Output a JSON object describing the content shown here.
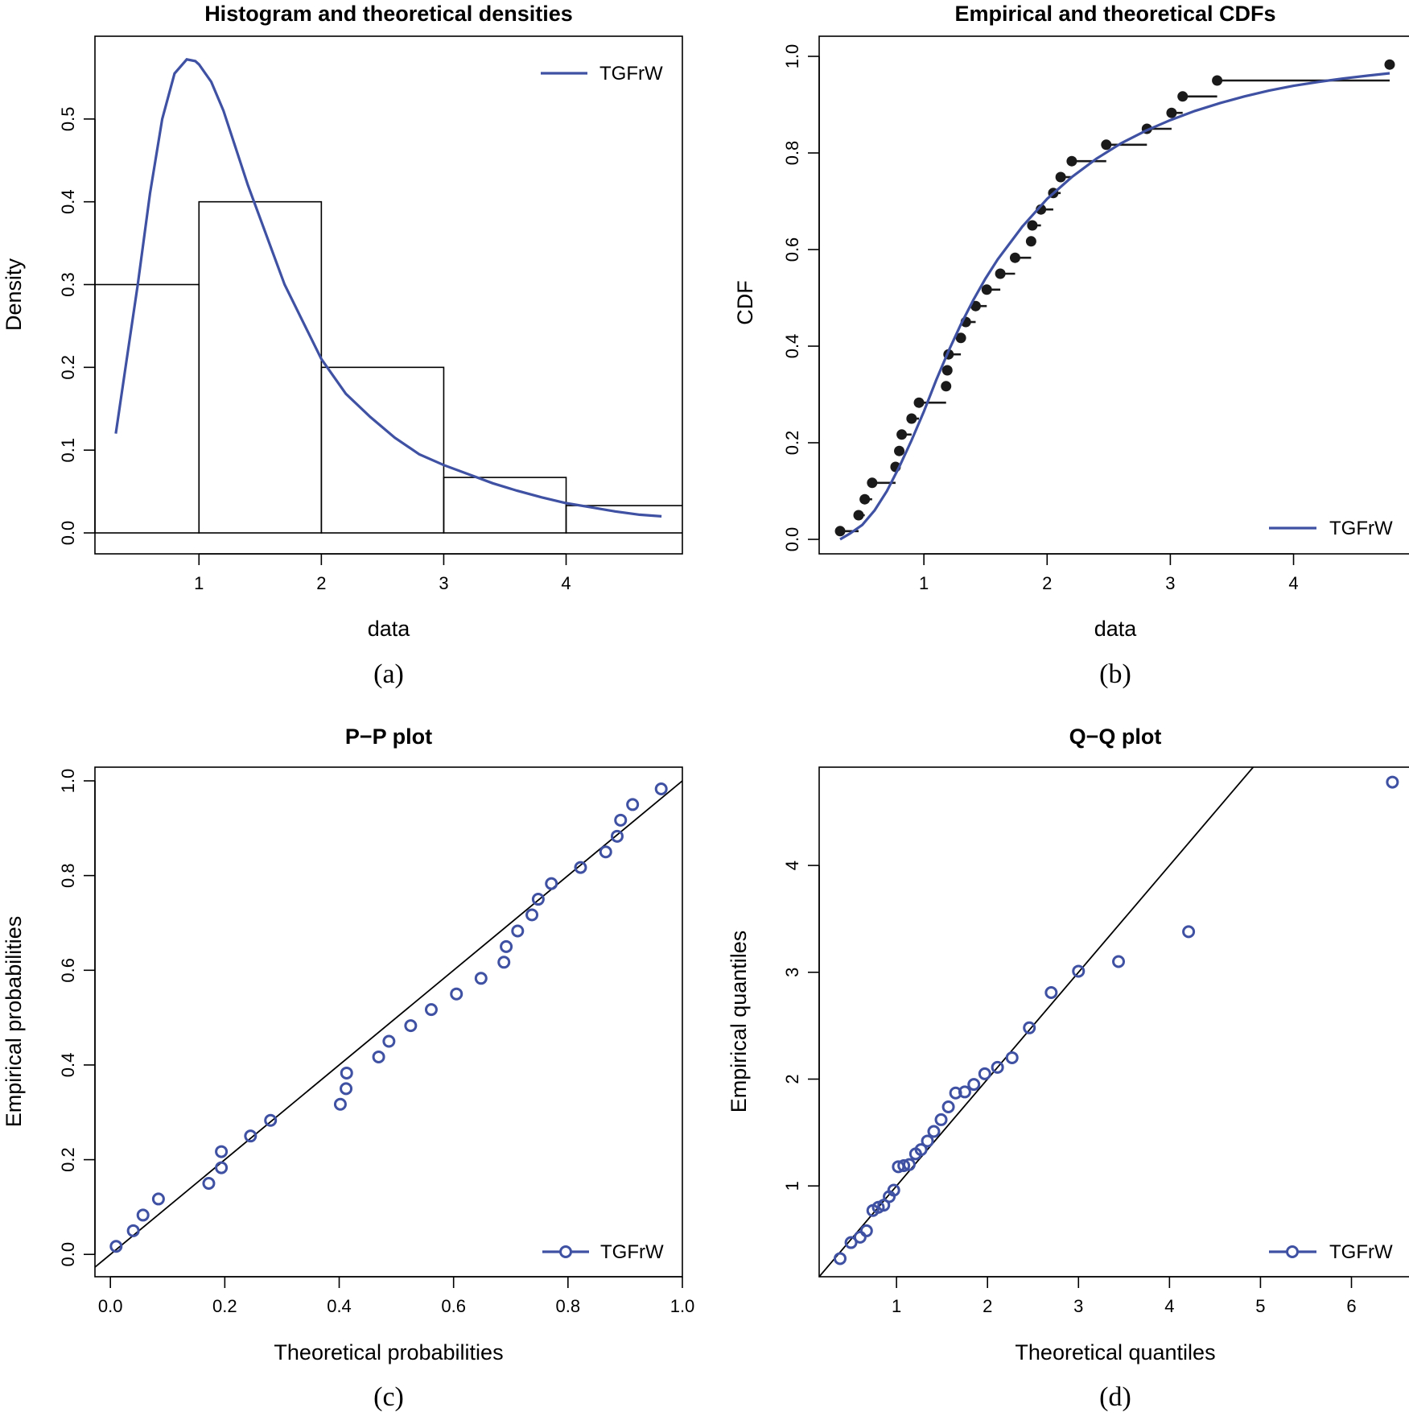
{
  "colors": {
    "series": "#3f51a3",
    "ink": "#000000",
    "points": "#1a1a1a"
  },
  "chart_data": [
    {
      "id": "a",
      "type": "bar",
      "title": "Histogram and theoretical densities",
      "xlabel": "data",
      "ylabel": "Density",
      "caption": "(a)",
      "xlim": [
        0.15,
        4.95
      ],
      "ylim": [
        0,
        0.6
      ],
      "xticks": [
        1,
        2,
        3,
        4
      ],
      "yticks": [
        0.0,
        0.1,
        0.2,
        0.3,
        0.4,
        0.5
      ],
      "ytick_labels": [
        "0.0",
        "0.1",
        "0.2",
        "0.3",
        "0.4",
        "0.5"
      ],
      "bins": [
        [
          0,
          1
        ],
        [
          1,
          2
        ],
        [
          2,
          3
        ],
        [
          3,
          4
        ],
        [
          4,
          5
        ]
      ],
      "values": [
        0.3,
        0.4,
        0.2,
        0.067,
        0.033
      ],
      "legend": {
        "position": "top-right",
        "entries": [
          "TGFrW"
        ]
      },
      "series": [
        {
          "name": "TGFrW",
          "kind": "line",
          "x": [
            0.32,
            0.4,
            0.5,
            0.6,
            0.7,
            0.8,
            0.9,
            0.97,
            1.0,
            1.1,
            1.2,
            1.3,
            1.4,
            1.5,
            1.6,
            1.7,
            1.8,
            2.0,
            2.2,
            2.4,
            2.6,
            2.8,
            3.0,
            3.2,
            3.4,
            3.6,
            3.8,
            4.0,
            4.2,
            4.4,
            4.6,
            4.78
          ],
          "y": [
            0.12,
            0.2,
            0.3,
            0.41,
            0.5,
            0.555,
            0.572,
            0.57,
            0.566,
            0.545,
            0.51,
            0.465,
            0.42,
            0.38,
            0.34,
            0.3,
            0.27,
            0.21,
            0.168,
            0.14,
            0.115,
            0.095,
            0.082,
            0.071,
            0.06,
            0.051,
            0.043,
            0.036,
            0.031,
            0.026,
            0.022,
            0.02
          ]
        }
      ]
    },
    {
      "id": "b",
      "type": "line",
      "title": "Empirical and theoretical CDFs",
      "xlabel": "data",
      "ylabel": "CDF",
      "caption": "(b)",
      "xlim": [
        0.15,
        4.95
      ],
      "ylim": [
        0,
        1.0
      ],
      "xticks": [
        1,
        2,
        3,
        4
      ],
      "yticks": [
        0.0,
        0.2,
        0.4,
        0.6,
        0.8,
        1.0
      ],
      "ytick_labels": [
        "0.0",
        "0.2",
        "0.4",
        "0.6",
        "0.8",
        "1.0"
      ],
      "legend": {
        "position": "bottom-right",
        "entries": [
          "TGFrW"
        ]
      },
      "ecdf_x": [
        0.32,
        0.47,
        0.52,
        0.58,
        0.77,
        0.8,
        0.82,
        0.9,
        0.96,
        1.18,
        1.19,
        1.2,
        1.3,
        1.34,
        1.42,
        1.51,
        1.62,
        1.74,
        1.87,
        1.88,
        1.95,
        2.05,
        2.11,
        2.2,
        2.48,
        2.81,
        3.01,
        3.1,
        3.38,
        4.78
      ],
      "ecdf_y": [
        0.017,
        0.05,
        0.083,
        0.117,
        0.15,
        0.183,
        0.217,
        0.25,
        0.283,
        0.317,
        0.35,
        0.383,
        0.417,
        0.45,
        0.483,
        0.517,
        0.55,
        0.583,
        0.617,
        0.65,
        0.683,
        0.717,
        0.75,
        0.783,
        0.817,
        0.85,
        0.883,
        0.917,
        0.95,
        0.983
      ],
      "series": [
        {
          "name": "TGFrW",
          "kind": "line",
          "x": [
            0.32,
            0.4,
            0.5,
            0.6,
            0.7,
            0.8,
            0.9,
            1.0,
            1.1,
            1.2,
            1.3,
            1.4,
            1.5,
            1.6,
            1.8,
            2.0,
            2.2,
            2.4,
            2.6,
            2.8,
            3.0,
            3.2,
            3.4,
            3.6,
            3.8,
            4.0,
            4.2,
            4.4,
            4.6,
            4.78
          ],
          "y": [
            0.0,
            0.012,
            0.03,
            0.06,
            0.1,
            0.15,
            0.205,
            0.265,
            0.33,
            0.39,
            0.445,
            0.495,
            0.54,
            0.58,
            0.648,
            0.705,
            0.75,
            0.788,
            0.82,
            0.846,
            0.868,
            0.887,
            0.903,
            0.917,
            0.929,
            0.939,
            0.947,
            0.954,
            0.96,
            0.965
          ]
        }
      ]
    },
    {
      "id": "c",
      "type": "scatter",
      "title": "P−P plot",
      "xlabel": "Theoretical probabilities",
      "ylabel": "Empirical probabilities",
      "caption": "(c)",
      "xlim": [
        -0.027,
        1.0
      ],
      "ylim": [
        -0.02,
        1.0
      ],
      "xticks": [
        0.0,
        0.2,
        0.4,
        0.6,
        0.8,
        1.0
      ],
      "xtick_labels": [
        "0.0",
        "0.2",
        "0.4",
        "0.6",
        "0.8",
        "1.0"
      ],
      "yticks": [
        0.0,
        0.2,
        0.4,
        0.6,
        0.8,
        1.0
      ],
      "ytick_labels": [
        "0.0",
        "0.2",
        "0.4",
        "0.6",
        "0.8",
        "1.0"
      ],
      "reference_line": "y = x",
      "legend": {
        "position": "bottom-right",
        "entries": [
          "TGFrW"
        ]
      },
      "series": [
        {
          "name": "TGFrW",
          "x": [
            0.01,
            0.04,
            0.057,
            0.084,
            0.172,
            0.194,
            0.194,
            0.245,
            0.28,
            0.402,
            0.412,
            0.413,
            0.469,
            0.487,
            0.525,
            0.561,
            0.605,
            0.648,
            0.688,
            0.692,
            0.712,
            0.737,
            0.748,
            0.771,
            0.822,
            0.866,
            0.886,
            0.892,
            0.913,
            0.963
          ],
          "y": [
            0.017,
            0.05,
            0.083,
            0.117,
            0.15,
            0.183,
            0.217,
            0.25,
            0.283,
            0.317,
            0.35,
            0.383,
            0.417,
            0.45,
            0.483,
            0.517,
            0.55,
            0.583,
            0.617,
            0.65,
            0.683,
            0.717,
            0.75,
            0.783,
            0.817,
            0.85,
            0.883,
            0.917,
            0.95,
            0.983
          ]
        }
      ]
    },
    {
      "id": "d",
      "type": "scatter",
      "title": "Q−Q plot",
      "xlabel": "Theoretical quantiles",
      "ylabel": "Empirical quantiles",
      "caption": "(d)",
      "xlim": [
        0.15,
        6.65
      ],
      "ylim": [
        0.15,
        4.92
      ],
      "xticks": [
        1,
        2,
        3,
        4,
        5,
        6
      ],
      "yticks": [
        1,
        2,
        3,
        4
      ],
      "reference_line": "y = x",
      "legend": {
        "position": "bottom-right",
        "entries": [
          "TGFrW"
        ]
      },
      "series": [
        {
          "name": "TGFrW",
          "x": [
            0.38,
            0.5,
            0.6,
            0.67,
            0.74,
            0.8,
            0.86,
            0.92,
            0.97,
            1.02,
            1.08,
            1.14,
            1.21,
            1.27,
            1.34,
            1.41,
            1.49,
            1.57,
            1.65,
            1.75,
            1.85,
            1.97,
            2.11,
            2.27,
            2.46,
            2.7,
            3.0,
            3.44,
            4.21,
            6.45
          ],
          "y": [
            0.32,
            0.47,
            0.52,
            0.58,
            0.77,
            0.8,
            0.82,
            0.9,
            0.96,
            1.18,
            1.19,
            1.2,
            1.3,
            1.34,
            1.42,
            1.51,
            1.62,
            1.74,
            1.87,
            1.88,
            1.95,
            2.05,
            2.11,
            2.2,
            2.48,
            2.81,
            3.01,
            3.1,
            3.38,
            4.78
          ]
        }
      ]
    }
  ]
}
